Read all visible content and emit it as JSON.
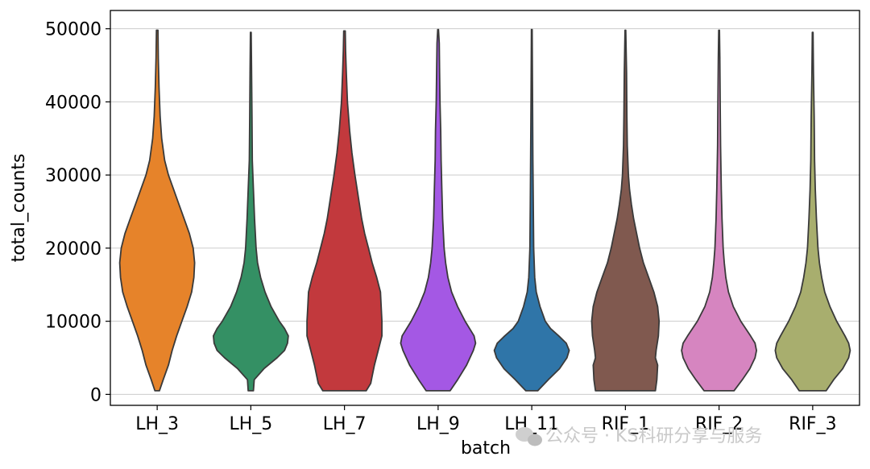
{
  "chart_data": {
    "type": "violin",
    "xlabel": "batch",
    "ylabel": "total_counts",
    "ylim": [
      -1500,
      52500
    ],
    "yticks": [
      0,
      10000,
      20000,
      30000,
      40000,
      50000
    ],
    "ytick_labels": [
      "0",
      "10000",
      "20000",
      "30000",
      "40000",
      "50000"
    ],
    "grid": "horizontal",
    "categories": [
      "LH_3",
      "LH_5",
      "LH_7",
      "LH_9",
      "LH_11",
      "RIF_1",
      "RIF_2",
      "RIF_3"
    ],
    "colors": [
      "#e6832a",
      "#349064",
      "#c2393d",
      "#a458e4",
      "#2f75a8",
      "#80594f",
      "#d685c0",
      "#a8ae6e"
    ],
    "violins": [
      {
        "name": "LH_3",
        "min": 500,
        "max": 49800,
        "profile": [
          [
            500,
            0.06
          ],
          [
            2000,
            0.16
          ],
          [
            4000,
            0.3
          ],
          [
            6000,
            0.4
          ],
          [
            8000,
            0.52
          ],
          [
            10000,
            0.66
          ],
          [
            12000,
            0.8
          ],
          [
            14000,
            0.92
          ],
          [
            16000,
            0.98
          ],
          [
            18000,
            1.0
          ],
          [
            20000,
            0.96
          ],
          [
            22000,
            0.86
          ],
          [
            24000,
            0.72
          ],
          [
            26000,
            0.58
          ],
          [
            28000,
            0.44
          ],
          [
            30000,
            0.3
          ],
          [
            32000,
            0.2
          ],
          [
            35000,
            0.12
          ],
          [
            38000,
            0.08
          ],
          [
            42000,
            0.05
          ],
          [
            46000,
            0.03
          ],
          [
            49800,
            0.02
          ]
        ]
      },
      {
        "name": "LH_5",
        "min": 500,
        "max": 49500,
        "profile": [
          [
            500,
            0.07
          ],
          [
            2000,
            0.09
          ],
          [
            3500,
            0.35
          ],
          [
            5000,
            0.7
          ],
          [
            6000,
            0.9
          ],
          [
            7000,
            0.98
          ],
          [
            8000,
            1.0
          ],
          [
            9000,
            0.9
          ],
          [
            10000,
            0.76
          ],
          [
            12000,
            0.54
          ],
          [
            14000,
            0.38
          ],
          [
            16000,
            0.26
          ],
          [
            18000,
            0.18
          ],
          [
            20000,
            0.14
          ],
          [
            24000,
            0.1
          ],
          [
            28000,
            0.07
          ],
          [
            32000,
            0.04
          ],
          [
            38000,
            0.03
          ],
          [
            44000,
            0.02
          ],
          [
            49500,
            0.01
          ]
        ]
      },
      {
        "name": "LH_7",
        "min": 500,
        "max": 49700,
        "profile": [
          [
            500,
            0.58
          ],
          [
            1500,
            0.7
          ],
          [
            2500,
            0.74
          ],
          [
            4000,
            0.8
          ],
          [
            6000,
            0.9
          ],
          [
            8000,
            1.0
          ],
          [
            10000,
            1.0
          ],
          [
            12000,
            0.98
          ],
          [
            14000,
            0.96
          ],
          [
            16000,
            0.86
          ],
          [
            18000,
            0.74
          ],
          [
            20000,
            0.64
          ],
          [
            22000,
            0.54
          ],
          [
            24000,
            0.46
          ],
          [
            26000,
            0.4
          ],
          [
            28000,
            0.34
          ],
          [
            30000,
            0.28
          ],
          [
            33000,
            0.2
          ],
          [
            36000,
            0.14
          ],
          [
            40000,
            0.08
          ],
          [
            44000,
            0.05
          ],
          [
            47000,
            0.03
          ],
          [
            49700,
            0.02
          ]
        ]
      },
      {
        "name": "LH_9",
        "min": 500,
        "max": 49900,
        "profile": [
          [
            500,
            0.32
          ],
          [
            2000,
            0.52
          ],
          [
            4000,
            0.76
          ],
          [
            6000,
            0.94
          ],
          [
            7000,
            1.0
          ],
          [
            8000,
            0.96
          ],
          [
            10000,
            0.72
          ],
          [
            12000,
            0.52
          ],
          [
            14000,
            0.36
          ],
          [
            16000,
            0.26
          ],
          [
            18000,
            0.2
          ],
          [
            20000,
            0.16
          ],
          [
            24000,
            0.12
          ],
          [
            28000,
            0.1
          ],
          [
            32000,
            0.08
          ],
          [
            36000,
            0.07
          ],
          [
            40000,
            0.05
          ],
          [
            44000,
            0.04
          ],
          [
            48000,
            0.03
          ],
          [
            49900,
            0.01
          ]
        ]
      },
      {
        "name": "LH_11",
        "min": 500,
        "max": 49900,
        "profile": [
          [
            500,
            0.16
          ],
          [
            2000,
            0.44
          ],
          [
            3500,
            0.74
          ],
          [
            5000,
            0.94
          ],
          [
            6000,
            1.0
          ],
          [
            7000,
            0.92
          ],
          [
            8000,
            0.72
          ],
          [
            9000,
            0.5
          ],
          [
            10000,
            0.36
          ],
          [
            12000,
            0.22
          ],
          [
            14000,
            0.12
          ],
          [
            16000,
            0.08
          ],
          [
            20000,
            0.05
          ],
          [
            26000,
            0.04
          ],
          [
            32000,
            0.03
          ],
          [
            40000,
            0.02
          ],
          [
            49900,
            0.01
          ]
        ]
      },
      {
        "name": "RIF_1",
        "min": 500,
        "max": 49800,
        "profile": [
          [
            500,
            0.8
          ],
          [
            2000,
            0.84
          ],
          [
            4000,
            0.86
          ],
          [
            5000,
            0.8
          ],
          [
            6000,
            0.82
          ],
          [
            8000,
            0.88
          ],
          [
            10000,
            0.9
          ],
          [
            12000,
            0.86
          ],
          [
            14000,
            0.76
          ],
          [
            16000,
            0.62
          ],
          [
            18000,
            0.48
          ],
          [
            20000,
            0.38
          ],
          [
            22000,
            0.3
          ],
          [
            24000,
            0.22
          ],
          [
            26000,
            0.16
          ],
          [
            28000,
            0.11
          ],
          [
            30000,
            0.08
          ],
          [
            34000,
            0.05
          ],
          [
            38000,
            0.04
          ],
          [
            44000,
            0.03
          ],
          [
            49800,
            0.01
          ]
        ]
      },
      {
        "name": "RIF_2",
        "min": 500,
        "max": 49800,
        "profile": [
          [
            500,
            0.4
          ],
          [
            2000,
            0.62
          ],
          [
            3500,
            0.82
          ],
          [
            5000,
            0.96
          ],
          [
            6000,
            1.0
          ],
          [
            7000,
            0.96
          ],
          [
            8000,
            0.84
          ],
          [
            10000,
            0.58
          ],
          [
            12000,
            0.38
          ],
          [
            14000,
            0.25
          ],
          [
            16000,
            0.18
          ],
          [
            18000,
            0.14
          ],
          [
            20000,
            0.11
          ],
          [
            24000,
            0.08
          ],
          [
            28000,
            0.06
          ],
          [
            34000,
            0.04
          ],
          [
            40000,
            0.03
          ],
          [
            46000,
            0.02
          ],
          [
            49800,
            0.01
          ]
        ]
      },
      {
        "name": "RIF_3",
        "min": 500,
        "max": 49500,
        "profile": [
          [
            500,
            0.36
          ],
          [
            2000,
            0.56
          ],
          [
            3500,
            0.8
          ],
          [
            5000,
            0.96
          ],
          [
            6000,
            1.0
          ],
          [
            7000,
            0.96
          ],
          [
            8000,
            0.86
          ],
          [
            10000,
            0.64
          ],
          [
            12000,
            0.46
          ],
          [
            14000,
            0.32
          ],
          [
            16000,
            0.24
          ],
          [
            18000,
            0.18
          ],
          [
            20000,
            0.14
          ],
          [
            24000,
            0.1
          ],
          [
            28000,
            0.07
          ],
          [
            32000,
            0.05
          ],
          [
            38000,
            0.04
          ],
          [
            44000,
            0.02
          ],
          [
            49500,
            0.01
          ]
        ]
      }
    ]
  },
  "watermark": {
    "text": "公众号 · KS科研分享与服务"
  }
}
